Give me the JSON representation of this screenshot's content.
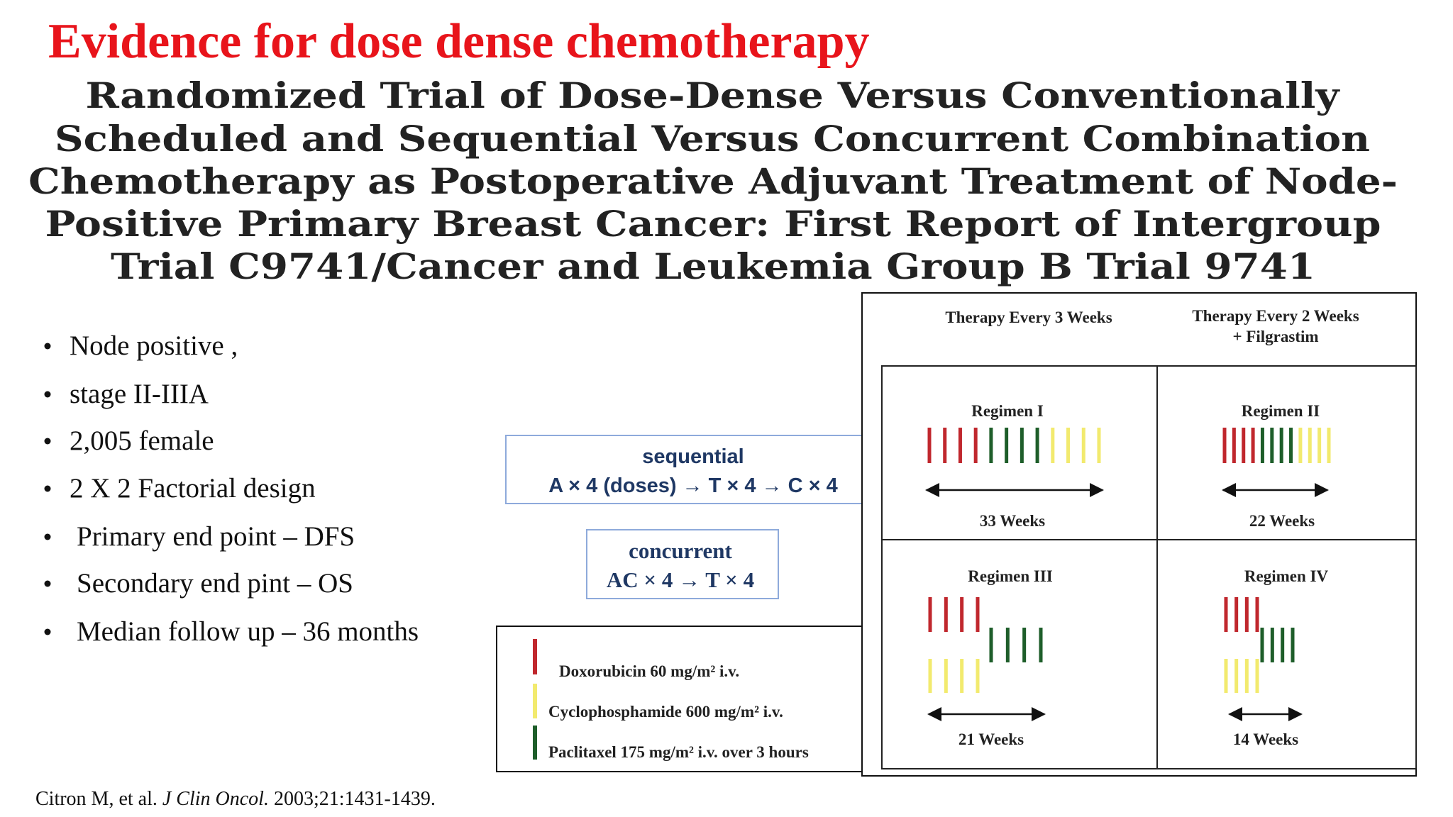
{
  "title": "Evidence for dose dense chemotherapy",
  "paper_title": {
    "lines": [
      "Randomized Trial of Dose-Dense Versus Conventionally",
      "Scheduled and Sequential Versus Concurrent Combination",
      "Chemotherapy as Postoperative Adjuvant Treatment of Node-",
      "Positive Primary Breast Cancer: First Report of Intergroup",
      "Trial C9741/Cancer and Leukemia Group B Trial 9741"
    ]
  },
  "bullets": [
    "Node positive ,",
    "stage II-IIIA",
    "2,005 female",
    "2 X 2 Factorial design",
    "Primary end point – DFS",
    "Secondary end pint – OS",
    "Median follow up – 36 months"
  ],
  "citation": {
    "authors": "Citron M, et al.",
    "journal": "J Clin Oncol.",
    "details": "2003;21:1431-1439."
  },
  "sequential_box": {
    "heading": "sequential",
    "scheme": "A × 4 (doses) → T × 4 → C × 4"
  },
  "concurrent_box": {
    "heading": "concurrent",
    "scheme": "AC × 4 → T × 4"
  },
  "legend": [
    "Doxorubicin 60 mg/m² i.v.",
    "Cyclophosphamide 600 mg/m² i.v.",
    "Paclitaxel 175 mg/m² i.v. over 3 hours"
  ],
  "diagram": {
    "headers": [
      "Therapy Every 3 Weeks",
      "Therapy Every 2 Weeks",
      "+ Filgrastim"
    ],
    "regimens": [
      {
        "name": "Regimen I",
        "duration": "33 Weeks"
      },
      {
        "name": "Regimen II",
        "duration": "22 Weeks"
      },
      {
        "name": "Regimen III",
        "duration": "21 Weeks"
      },
      {
        "name": "Regimen IV",
        "duration": "14 Weeks"
      }
    ]
  }
}
